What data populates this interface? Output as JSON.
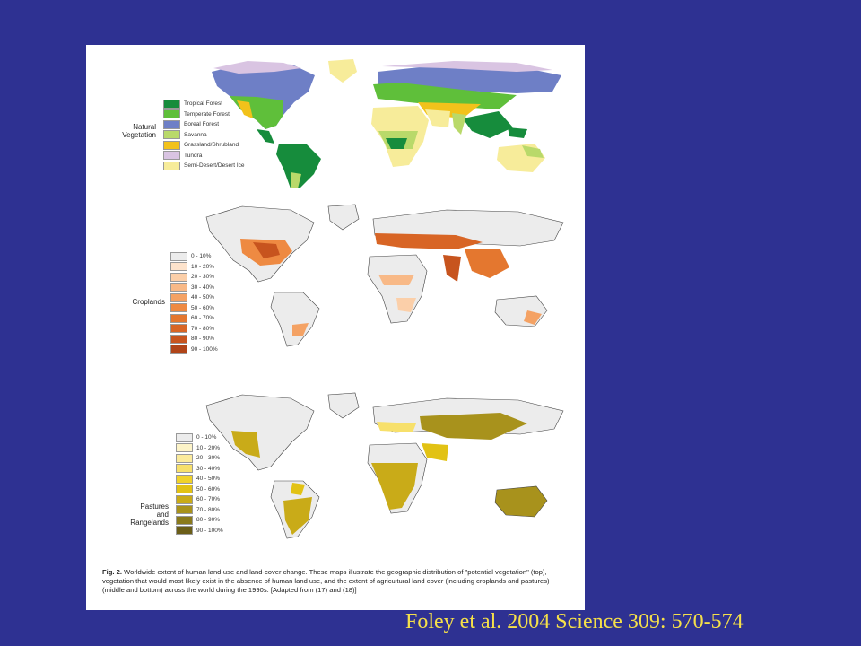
{
  "citation": "Foley et al. 2004 Science 309: 570-574",
  "panels": {
    "vegetation": {
      "label": "Natural\nVegetation",
      "legend": [
        {
          "label": "Tropical Forest",
          "color": "#168c3c"
        },
        {
          "label": "Temperate Forest",
          "color": "#5fbf3a"
        },
        {
          "label": "Boreal Forest",
          "color": "#6e7fc6"
        },
        {
          "label": "Savanna",
          "color": "#b9d96a"
        },
        {
          "label": "Grassland/Shrubland",
          "color": "#f2c21b"
        },
        {
          "label": "Tundra",
          "color": "#d9c4e2"
        },
        {
          "label": "Semi-Desert/Desert Ice",
          "color": "#f7ec9a"
        }
      ]
    },
    "croplands": {
      "label": "Croplands",
      "legend": [
        {
          "label": "0 - 10%",
          "color": "#ececec"
        },
        {
          "label": "10 - 20%",
          "color": "#fde3cc"
        },
        {
          "label": "20 - 30%",
          "color": "#fbcfa9"
        },
        {
          "label": "30 - 40%",
          "color": "#f8b987"
        },
        {
          "label": "40 - 50%",
          "color": "#f4a264"
        },
        {
          "label": "50 - 60%",
          "color": "#ee8a42"
        },
        {
          "label": "60 - 70%",
          "color": "#e4772f"
        },
        {
          "label": "70 - 80%",
          "color": "#d86525"
        },
        {
          "label": "80 - 90%",
          "color": "#c7541e"
        },
        {
          "label": "90 - 100%",
          "color": "#b04418"
        }
      ]
    },
    "pastures": {
      "label": "Pastures\nand\nRangelands",
      "legend": [
        {
          "label": "0 - 10%",
          "color": "#ececec"
        },
        {
          "label": "10 - 20%",
          "color": "#fdf4c8"
        },
        {
          "label": "20 - 30%",
          "color": "#fbeb9c"
        },
        {
          "label": "30 - 40%",
          "color": "#f7e06b"
        },
        {
          "label": "40 - 50%",
          "color": "#f0d22a"
        },
        {
          "label": "50 - 60%",
          "color": "#e2c214"
        },
        {
          "label": "60 - 70%",
          "color": "#c9ab18"
        },
        {
          "label": "70 - 80%",
          "color": "#a8921c"
        },
        {
          "label": "80 - 90%",
          "color": "#8a7a1c"
        },
        {
          "label": "90 - 100%",
          "color": "#6b5e18"
        }
      ]
    }
  },
  "caption": {
    "lead": "Fig. 2.",
    "text": " Worldwide extent of human land-use and land-cover change. These maps illustrate the geographic distribution of \"potential vegetation\" (top), vegetation that would most likely exist in the absence of human land use, and the extent of agricultural land cover (including croplands and pastures) (middle and bottom) across the world during the 1990s. [Adapted from (17) and (18)]"
  }
}
